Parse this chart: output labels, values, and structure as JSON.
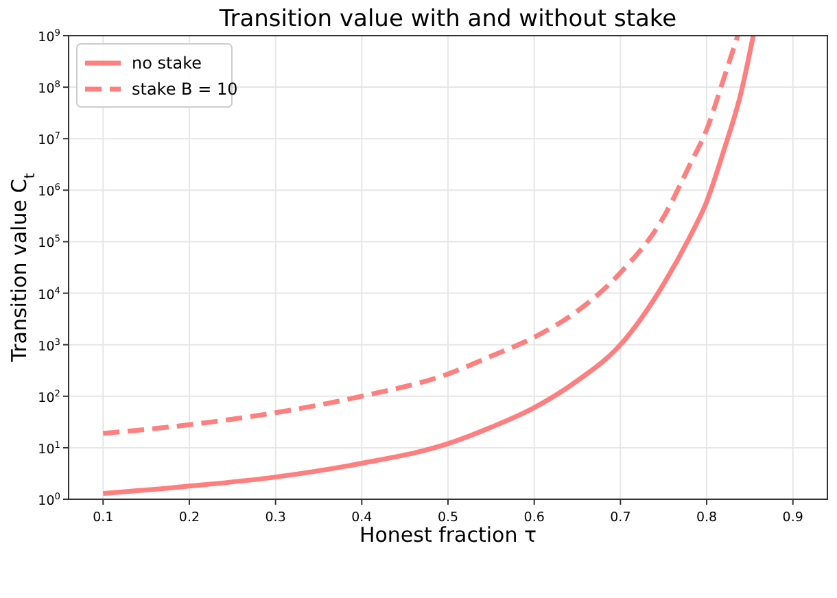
{
  "chart_data": {
    "type": "line",
    "title": "Transition value with and without stake",
    "xlabel": "Honest fraction τ",
    "ylabel": "Transition value C$_{t}$",
    "log": "y",
    "grid": true,
    "legend": "top left",
    "xlim": [
      0.06,
      0.94
    ],
    "xticks": [
      0.1,
      0.2,
      0.3,
      0.4,
      0.5,
      0.6,
      0.7,
      0.8,
      0.9
    ],
    "ylim": [
      1,
      1000000000
    ],
    "yticks": [
      {
        "value": 1,
        "label": "10$^{0}$"
      },
      {
        "value": 10,
        "label": "10$^{1}$"
      },
      {
        "value": 100,
        "label": "10$^{2}$"
      },
      {
        "value": 1000,
        "label": "10$^{3}$"
      },
      {
        "value": 10000,
        "label": "10$^{4}$"
      },
      {
        "value": 100000,
        "label": "10$^{5}$"
      },
      {
        "value": 1000000,
        "label": "10$^{6}$"
      },
      {
        "value": 10000000,
        "label": "10$^{7}$"
      },
      {
        "value": 100000000,
        "label": "10$^{8}$"
      },
      {
        "value": 1000000000,
        "label": "10$^{9}$"
      }
    ],
    "series": [
      {
        "name": "no stake",
        "color": "#ff7f7f",
        "line_style": "solid",
        "x": [
          0.1,
          0.2,
          0.3,
          0.4,
          0.5,
          0.55,
          0.6,
          0.65,
          0.7,
          0.75,
          0.78,
          0.8,
          0.82,
          0.84,
          0.854
        ],
        "values": [
          1.3,
          1.8,
          2.7,
          5,
          12,
          25,
          60,
          200,
          1000,
          15000,
          120000,
          600000,
          6000000,
          80000000,
          1000000000
        ]
      },
      {
        "name": "stake B = 10",
        "color": "#ff7f7f",
        "line_style": "dashed",
        "x": [
          0.1,
          0.2,
          0.3,
          0.4,
          0.5,
          0.55,
          0.6,
          0.65,
          0.7,
          0.75,
          0.78,
          0.8,
          0.82,
          0.836
        ],
        "values": [
          19,
          28,
          48,
          100,
          270,
          600,
          1400,
          4500,
          25000,
          300000,
          3000000,
          15000000,
          150000000,
          1000000000
        ]
      }
    ]
  }
}
